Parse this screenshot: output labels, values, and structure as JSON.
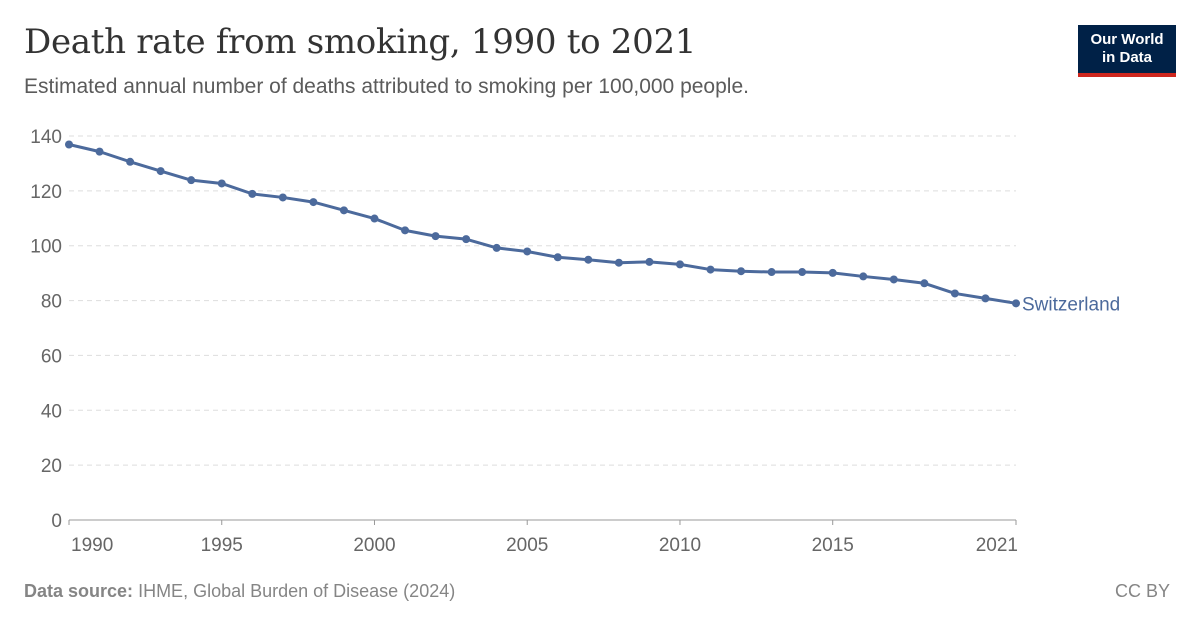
{
  "header": {
    "title": "Death rate from smoking, 1990 to 2021",
    "subtitle": "Estimated annual number of deaths attributed to smoking per 100,000 people.",
    "logo_line1": "Our World",
    "logo_line2": "in Data"
  },
  "footer": {
    "source_label": "Data source:",
    "source_text": "IHME, Global Burden of Disease (2024)",
    "license": "CC BY"
  },
  "colors": {
    "series": "#4c6a9c",
    "grid": "#dddddd",
    "axis": "#666666",
    "logo_bg": "#002147",
    "logo_accent": "#ce261e"
  },
  "chart_data": {
    "type": "line",
    "title": "Death rate from smoking, 1990 to 2021",
    "subtitle": "Estimated annual number of deaths attributed to smoking per 100,000 people.",
    "xlabel": "",
    "ylabel": "",
    "xlim": [
      1990,
      2021
    ],
    "ylim": [
      0,
      140
    ],
    "x_ticks": [
      1990,
      1995,
      2000,
      2005,
      2010,
      2015,
      2021
    ],
    "y_ticks": [
      0,
      20,
      40,
      60,
      80,
      100,
      120,
      140
    ],
    "grid": "horizontal dashed",
    "series": [
      {
        "name": "Switzerland",
        "x": [
          1990,
          1991,
          1992,
          1993,
          1994,
          1995,
          1996,
          1997,
          1998,
          1999,
          2000,
          2001,
          2002,
          2003,
          2004,
          2005,
          2006,
          2007,
          2008,
          2009,
          2010,
          2011,
          2012,
          2013,
          2014,
          2015,
          2016,
          2017,
          2018,
          2019,
          2020,
          2021
        ],
        "values": [
          136.9,
          134.3,
          130.6,
          127.2,
          123.9,
          122.7,
          118.9,
          117.6,
          115.9,
          112.9,
          109.9,
          105.6,
          103.5,
          102.4,
          99.2,
          97.9,
          95.8,
          94.9,
          93.8,
          94.1,
          93.2,
          91.3,
          90.7,
          90.4,
          90.4,
          90.1,
          88.8,
          87.7,
          86.3,
          82.6,
          80.8,
          79.0
        ]
      }
    ]
  }
}
